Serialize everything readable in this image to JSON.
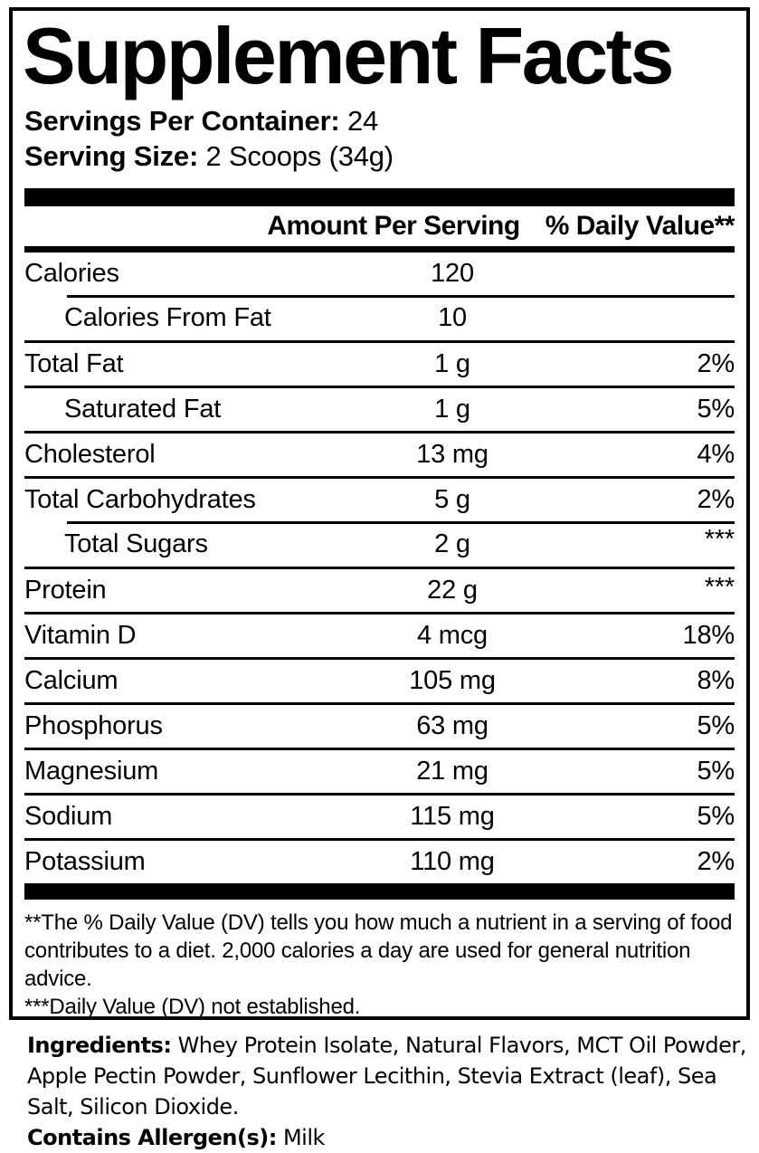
{
  "colors": {
    "ink": "#000000",
    "paper": "#ffffff"
  },
  "panel": {
    "title": "Supplement Facts",
    "servings": {
      "label": "Servings Per Container:",
      "value": "24"
    },
    "serving_size": {
      "label": "Serving Size:",
      "value": "2 Scoops (34g)"
    }
  },
  "table": {
    "headers": {
      "amount": "Amount Per Serving",
      "daily_value": "% Daily Value**"
    },
    "rows": [
      {
        "name": "Calories",
        "amount": "120",
        "dv": ""
      },
      {
        "name": "Calories From Fat",
        "amount": "10",
        "dv": ""
      },
      {
        "name": "Total Fat",
        "amount": "1 g",
        "dv": "2%"
      },
      {
        "name": "Saturated Fat",
        "amount": "1 g",
        "dv": "5%"
      },
      {
        "name": "Cholesterol",
        "amount": "13 mg",
        "dv": "4%"
      },
      {
        "name": "Total Carbohydrates",
        "amount": "5 g",
        "dv": "2%"
      },
      {
        "name": "Total Sugars",
        "amount": "2 g",
        "dv": "***"
      },
      {
        "name": "Protein",
        "amount": "22 g",
        "dv": "***"
      },
      {
        "name": "Vitamin D",
        "amount": "4 mcg",
        "dv": "18%"
      },
      {
        "name": "Calcium",
        "amount": "105 mg",
        "dv": "8%"
      },
      {
        "name": "Phosphorus",
        "amount": "63 mg",
        "dv": "5%"
      },
      {
        "name": "Magnesium",
        "amount": "21 mg",
        "dv": "5%"
      },
      {
        "name": "Sodium",
        "amount": "115 mg",
        "dv": "5%"
      },
      {
        "name": "Potassium",
        "amount": "110 mg",
        "dv": "2%"
      }
    ]
  },
  "footnotes": {
    "daily_value": "**The % Daily Value (DV) tells you how much a nutrient in a serving of food contributes to a diet. 2,000 calories a day are used for general nutrition advice.",
    "not_established": "***Daily Value (DV) not established."
  },
  "ingredients": {
    "label": "Ingredients:",
    "list": "Whey Protein Isolate, Natural Flavors, MCT Oil Powder, Apple Pectin Powder, Sunflower Lecithin, Stevia Extract (leaf), Sea Salt, Silicon Dioxide."
  },
  "allergen": {
    "label": "Contains Allergen(s):",
    "value": "Milk"
  }
}
